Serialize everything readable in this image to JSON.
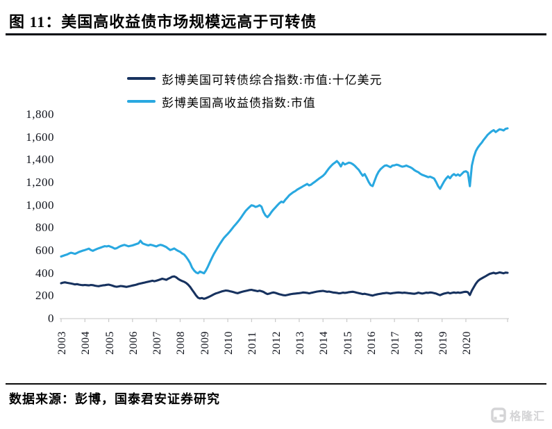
{
  "header": {
    "figure_label": "图 11：",
    "title": "美国高收益债市场规模远高于可转债"
  },
  "footer": {
    "source_label": "数据来源：",
    "source_text": "彭博，国泰君安证券研究"
  },
  "watermark": {
    "brand": "格隆汇",
    "icon": "gelonghui-g-mark"
  },
  "colors": {
    "convertible_line": "#17325f",
    "high_yield_line": "#29a8e0",
    "axis_line": "#d9d9d9",
    "tick_mark": "#c9c9c9",
    "title_rule": "#01050f"
  },
  "chart_data": {
    "type": "line",
    "title": "",
    "xlabel": "",
    "ylabel": "",
    "frequency": "monthly",
    "x_start": "2003-01",
    "x_end": "2021-10",
    "grid": false,
    "legend_position": "top",
    "ylim": [
      0,
      1800
    ],
    "y_tick_labels": [
      "0",
      "200",
      "400",
      "600",
      "800",
      "1,000",
      "1,200",
      "1,400",
      "1,600",
      "1,800"
    ],
    "x_tick_labels": [
      "2003",
      "2004",
      "2005",
      "2006",
      "2007",
      "2008",
      "2009",
      "2010",
      "2011",
      "2012",
      "2013",
      "2014",
      "2015",
      "2016",
      "2017",
      "2018",
      "2019",
      "2020"
    ],
    "series": [
      {
        "name": "彭博美国可转债综合指数:市值:十亿美元",
        "color": "#17325f",
        "values": [
          312,
          318,
          320,
          316,
          313,
          310,
          306,
          302,
          304,
          300,
          297,
          295,
          297,
          295,
          293,
          297,
          295,
          291,
          288,
          286,
          290,
          293,
          295,
          298,
          300,
          296,
          290,
          284,
          281,
          284,
          288,
          286,
          283,
          280,
          284,
          288,
          292,
          296,
          300,
          306,
          310,
          314,
          318,
          322,
          326,
          330,
          334,
          330,
          334,
          340,
          346,
          352,
          348,
          342,
          352,
          360,
          370,
          372,
          364,
          350,
          340,
          332,
          325,
          315,
          300,
          280,
          255,
          230,
          205,
          185,
          178,
          182,
          175,
          180,
          188,
          196,
          205,
          214,
          222,
          228,
          234,
          240,
          244,
          248,
          246,
          242,
          238,
          233,
          228,
          224,
          230,
          236,
          240,
          244,
          248,
          252,
          254,
          250,
          246,
          242,
          246,
          242,
          236,
          225,
          217,
          221,
          227,
          231,
          227,
          221,
          215,
          211,
          207,
          205,
          209,
          213,
          217,
          219,
          221,
          223,
          225,
          227,
          231,
          229,
          227,
          223,
          227,
          231,
          235,
          239,
          241,
          243,
          245,
          241,
          237,
          239,
          235,
          231,
          229,
          227,
          223,
          225,
          229,
          227,
          229,
          233,
          235,
          237,
          233,
          229,
          225,
          221,
          217,
          219,
          215,
          211,
          207,
          203,
          209,
          213,
          217,
          219,
          223,
          225,
          227,
          225,
          221,
          225,
          227,
          229,
          231,
          229,
          227,
          229,
          227,
          225,
          223,
          221,
          219,
          223,
          229,
          225,
          221,
          225,
          229,
          227,
          231,
          229,
          225,
          221,
          213,
          207,
          215,
          221,
          225,
          229,
          223,
          227,
          231,
          227,
          231,
          227,
          231,
          235,
          237,
          233,
          208,
          248,
          278,
          308,
          330,
          345,
          355,
          365,
          375,
          385,
          395,
          400,
          405,
          398,
          402,
          408,
          404,
          400,
          406,
          404
        ]
      },
      {
        "name": "彭博美国高收益债指数:市值",
        "color": "#29a8e0",
        "values": [
          548,
          554,
          560,
          566,
          574,
          581,
          577,
          571,
          579,
          588,
          594,
          600,
          605,
          611,
          617,
          605,
          598,
          607,
          614,
          621,
          627,
          633,
          639,
          637,
          641,
          634,
          627,
          617,
          621,
          631,
          640,
          646,
          650,
          644,
          638,
          642,
          646,
          652,
          658,
          664,
          687,
          664,
          657,
          651,
          646,
          652,
          648,
          642,
          637,
          645,
          651,
          647,
          639,
          631,
          617,
          605,
          611,
          619,
          607,
          597,
          589,
          575,
          565,
          545,
          520,
          490,
          450,
          425,
          408,
          400,
          415,
          408,
          400,
          425,
          460,
          498,
          535,
          570,
          600,
          630,
          658,
          685,
          710,
          730,
          748,
          768,
          790,
          812,
          832,
          852,
          875,
          900,
          925,
          950,
          968,
          985,
          1000,
          995,
          985,
          990,
          1000,
          988,
          940,
          910,
          895,
          915,
          940,
          962,
          980,
          1000,
          1018,
          1032,
          1025,
          1048,
          1068,
          1088,
          1102,
          1115,
          1125,
          1138,
          1148,
          1158,
          1168,
          1178,
          1188,
          1175,
          1182,
          1196,
          1208,
          1222,
          1235,
          1248,
          1260,
          1278,
          1302,
          1326,
          1346,
          1363,
          1376,
          1390,
          1370,
          1342,
          1375,
          1360,
          1368,
          1376,
          1372,
          1362,
          1348,
          1330,
          1312,
          1285,
          1260,
          1275,
          1242,
          1205,
          1178,
          1169,
          1215,
          1262,
          1295,
          1318,
          1334,
          1348,
          1352,
          1344,
          1336,
          1350,
          1352,
          1358,
          1354,
          1346,
          1340,
          1344,
          1350,
          1342,
          1335,
          1325,
          1310,
          1300,
          1292,
          1278,
          1268,
          1262,
          1255,
          1248,
          1252,
          1244,
          1235,
          1205,
          1168,
          1145,
          1178,
          1210,
          1235,
          1255,
          1238,
          1262,
          1275,
          1262,
          1272,
          1260,
          1278,
          1295,
          1300,
          1288,
          1168,
          1350,
          1425,
          1478,
          1508,
          1532,
          1552,
          1578,
          1600,
          1622,
          1638,
          1652,
          1662,
          1645,
          1658,
          1670,
          1666,
          1660,
          1674,
          1678
        ]
      }
    ]
  }
}
